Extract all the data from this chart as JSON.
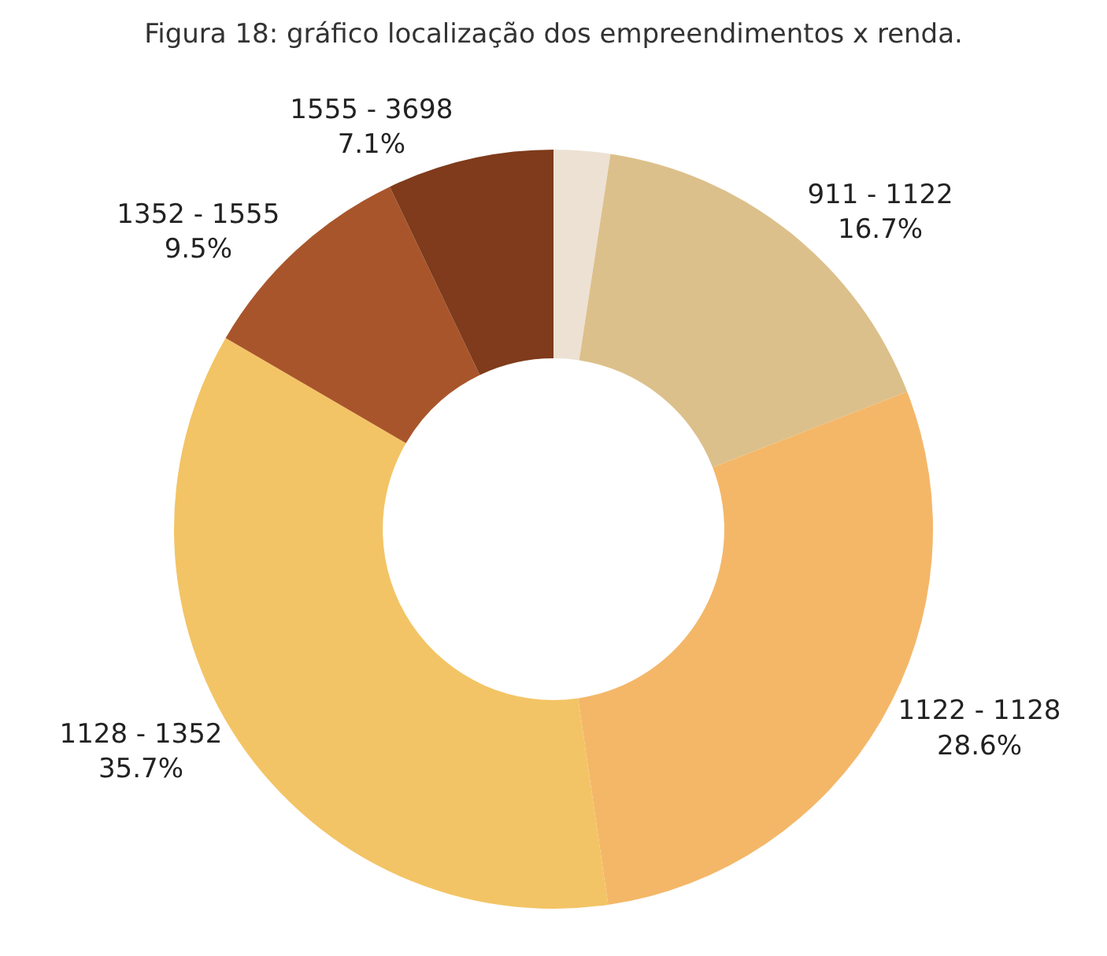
{
  "chart_data": {
    "type": "donut",
    "title": "Figura 18: gráfico localização dos empreendimentos x renda.",
    "categories": [
      null,
      "911 - 1122",
      "1122 - 1128",
      "1128 - 1352",
      "1352 - 1555",
      "1555 - 3698"
    ],
    "values": [
      2.4,
      16.7,
      28.6,
      35.7,
      9.5,
      7.1
    ],
    "value_labels": [
      null,
      "16.7%",
      "28.6%",
      "35.7%",
      "9.5%",
      "7.1%"
    ],
    "colors": [
      "#ede1d3",
      "#dcc08b",
      "#f4b768",
      "#f3c465",
      "#a9552b",
      "#7f3b1b"
    ],
    "legend": false
  }
}
